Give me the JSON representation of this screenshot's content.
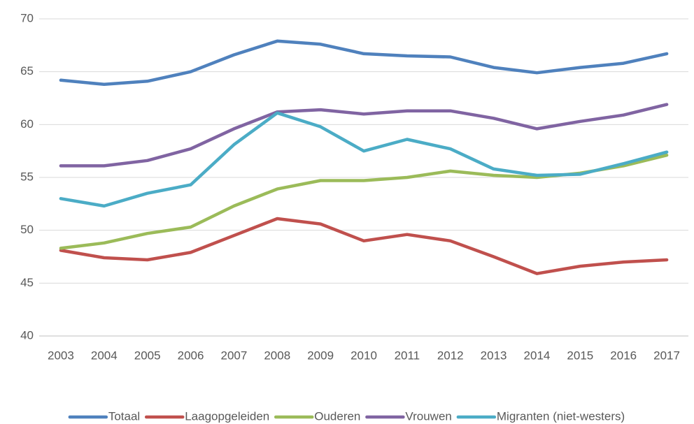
{
  "chart_data": {
    "type": "line",
    "categories": [
      "2003",
      "2004",
      "2005",
      "2006",
      "2007",
      "2008",
      "2009",
      "2010",
      "2011",
      "2012",
      "2013",
      "2014",
      "2015",
      "2016",
      "2017"
    ],
    "series": [
      {
        "name": "Totaal",
        "color": "#4f81bd",
        "values": [
          64.2,
          63.8,
          64.1,
          65.0,
          66.6,
          67.9,
          67.6,
          66.7,
          66.5,
          66.4,
          65.4,
          64.9,
          65.4,
          65.8,
          66.7
        ]
      },
      {
        "name": "Laagopgeleiden",
        "color": "#c0504d",
        "values": [
          48.1,
          47.4,
          47.2,
          47.9,
          49.5,
          51.1,
          50.6,
          49.0,
          49.6,
          49.0,
          47.5,
          45.9,
          46.6,
          47.0,
          47.2
        ]
      },
      {
        "name": "Ouderen",
        "color": "#9bbb59",
        "values": [
          48.3,
          48.8,
          49.7,
          50.3,
          52.3,
          53.9,
          54.7,
          54.7,
          55.0,
          55.6,
          55.2,
          55.0,
          55.4,
          56.1,
          57.1
        ]
      },
      {
        "name": "Vrouwen",
        "color": "#8064a2",
        "values": [
          56.1,
          56.1,
          56.6,
          57.7,
          59.6,
          61.2,
          61.4,
          61.0,
          61.3,
          61.3,
          60.6,
          59.6,
          60.3,
          60.9,
          61.9
        ]
      },
      {
        "name": "Migranten (niet-westers)",
        "color": "#4bacc6",
        "values": [
          53.0,
          52.3,
          53.5,
          54.3,
          58.1,
          61.1,
          59.8,
          57.5,
          58.6,
          57.7,
          55.8,
          55.2,
          55.3,
          56.3,
          57.4
        ]
      }
    ],
    "ylim": [
      40,
      70
    ],
    "yticks": [
      40,
      45,
      50,
      55,
      60,
      65,
      70
    ],
    "grid": true,
    "legend": "bottom"
  }
}
